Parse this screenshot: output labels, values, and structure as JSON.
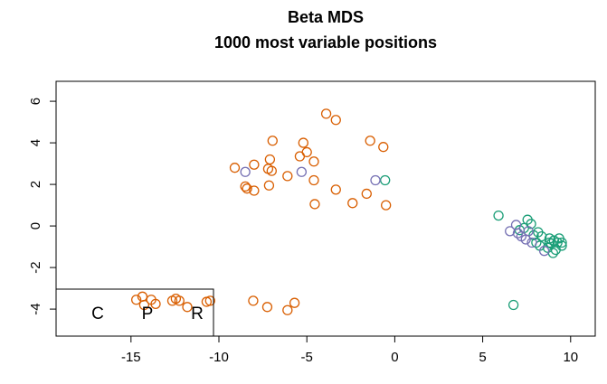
{
  "chart_data": {
    "type": "scatter",
    "title": "Beta MDS",
    "subtitle": "1000 most variable positions",
    "xlim": [
      -19.26,
      11.4
    ],
    "ylim": [
      -5.3,
      6.96
    ],
    "xticks": [
      -15,
      -10,
      -5,
      0,
      5,
      10
    ],
    "yticks": [
      -4,
      -2,
      0,
      2,
      4,
      6
    ],
    "grid": false,
    "legend": "bottomleft",
    "series": [
      {
        "name": "C",
        "color": "#1b9e77",
        "x": [
          -0.55,
          5.9,
          6.75,
          7.55,
          7.75,
          7.35,
          8.15,
          8.35,
          8.8,
          9.05,
          9.25,
          9.5,
          8.9,
          9.15,
          8.7,
          9.35,
          8.25,
          9.0,
          7.9,
          8.05,
          7.1,
          8.8,
          9.5
        ],
        "values": [
          2.2,
          0.5,
          -3.8,
          0.3,
          0.1,
          -0.1,
          -0.3,
          -0.5,
          -0.6,
          -0.7,
          -0.8,
          -0.95,
          -0.85,
          -1.15,
          -1.05,
          -0.6,
          -0.95,
          -1.3,
          -0.45,
          -0.8,
          -0.2,
          -0.8,
          -0.8
        ]
      },
      {
        "name": "P",
        "color": "#d95f02",
        "x": [
          -3.9,
          -3.35,
          -6.95,
          -5.2,
          -1.4,
          -0.65,
          -5.0,
          -5.4,
          -4.6,
          -7.1,
          -8.0,
          -9.1,
          -7.2,
          -7.0,
          -6.1,
          -4.6,
          -8.5,
          -8.4,
          -8.0,
          -7.15,
          -3.35,
          -1.6,
          -2.4,
          -4.55,
          -0.5,
          -8.05,
          -7.25,
          -5.7,
          -6.1,
          -14.7,
          -14.35,
          -14.25,
          -13.85,
          -13.6,
          -12.65,
          -12.45,
          -12.25,
          -11.8,
          -10.7,
          -10.5
        ],
        "values": [
          5.4,
          5.1,
          4.1,
          4.0,
          4.1,
          3.8,
          3.55,
          3.35,
          3.1,
          3.2,
          2.95,
          2.8,
          2.75,
          2.65,
          2.4,
          2.2,
          1.9,
          1.8,
          1.7,
          1.95,
          1.75,
          1.55,
          1.1,
          1.05,
          1.0,
          -3.6,
          -3.9,
          -3.7,
          -4.05,
          -3.55,
          -3.4,
          -3.8,
          -3.55,
          -3.75,
          -3.6,
          -3.5,
          -3.6,
          -3.9,
          -3.65,
          -3.6
        ]
      },
      {
        "name": "R",
        "color": "#7570b3",
        "x": [
          -8.5,
          -5.3,
          -1.1,
          6.55,
          6.9,
          7.0,
          7.45,
          7.8,
          7.2,
          8.5,
          7.6
        ],
        "values": [
          2.6,
          2.6,
          2.2,
          -0.25,
          0.05,
          -0.35,
          -0.65,
          -0.8,
          -0.5,
          -1.2,
          -0.25
        ]
      }
    ]
  }
}
